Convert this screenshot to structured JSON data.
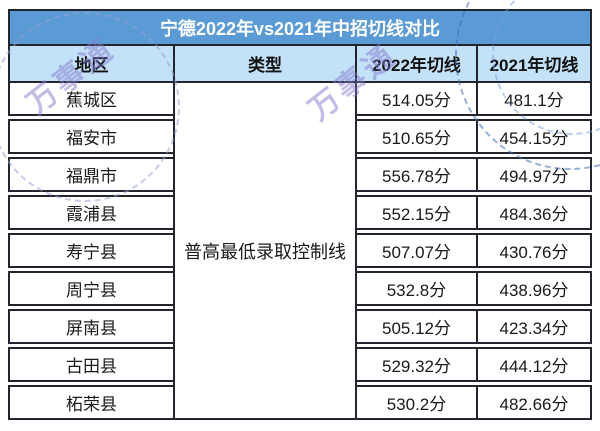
{
  "chart_data": {
    "type": "table",
    "title": "宁德2022年vs2021年中招切线对比",
    "columns": [
      "地区",
      "类型",
      "2022年切线",
      "2021年切线"
    ],
    "merged_type_value": "普高最低录取控制线",
    "rows": [
      {
        "region": "蕉城区",
        "cut_2022": "514.05分",
        "cut_2021": "481.1分"
      },
      {
        "region": "福安市",
        "cut_2022": "510.65分",
        "cut_2021": "454.15分"
      },
      {
        "region": "福鼎市",
        "cut_2022": "556.78分",
        "cut_2021": "494.97分"
      },
      {
        "region": "霞浦县",
        "cut_2022": "552.15分",
        "cut_2021": "484.36分"
      },
      {
        "region": "寿宁县",
        "cut_2022": "507.07分",
        "cut_2021": "430.76分"
      },
      {
        "region": "周宁县",
        "cut_2022": "532.8分",
        "cut_2021": "438.96分"
      },
      {
        "region": "屏南县",
        "cut_2022": "505.12分",
        "cut_2021": "423.34分"
      },
      {
        "region": "古田县",
        "cut_2022": "529.32分",
        "cut_2021": "444.12分"
      },
      {
        "region": "柘荣县",
        "cut_2022": "530.2分",
        "cut_2021": "482.66分"
      }
    ],
    "layout": {
      "grid": "off",
      "legend": "none"
    }
  },
  "watermark": {
    "text1": "万事通",
    "text2": "万事通"
  },
  "colors": {
    "title_bar": "#5b9bd5",
    "header_row": "#c3e1f7",
    "border": "#23242d",
    "title_text": "#ffffff",
    "body_text": "#1a1a1a",
    "watermark": "rgba(132,124,205,0.5)"
  }
}
